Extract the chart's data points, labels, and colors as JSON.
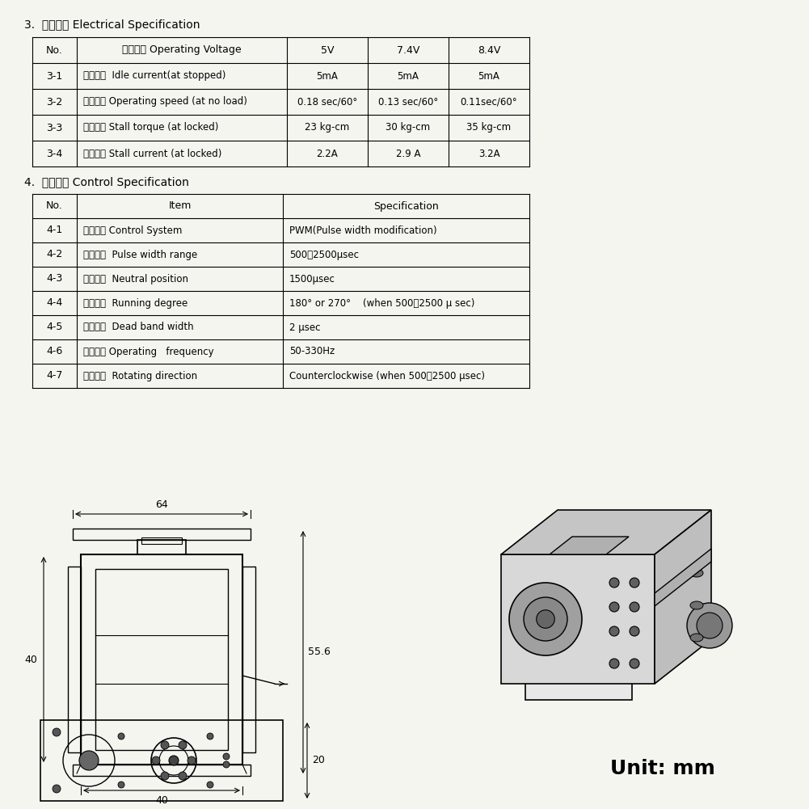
{
  "bg_color": "#f5f5f0",
  "table1_title": "3.  电气特性 Electrical Specification",
  "table1_headers": [
    "No.",
    "工作电压 Operating Voltage",
    "5V",
    "7.4V",
    "8.4V"
  ],
  "table1_rows": [
    [
      "3-1",
      "待机电流  Idle current(at stopped)",
      "5mA",
      "5mA",
      "5mA"
    ],
    [
      "3-2",
      "空载转速 Operating speed (at no load)",
      "0.18 sec/60°",
      "0.13 sec/60°",
      "0.11sec/60°"
    ],
    [
      "3-3",
      "堵转扭矩 Stall torque (at locked)",
      "23 kg-cm",
      "30 kg-cm",
      "35 kg-cm"
    ],
    [
      "3-4",
      "堵转电流 Stall current (at locked)",
      "2.2A",
      "2.9 A",
      "3.2A"
    ]
  ],
  "table2_title": "4.  控制特性 Control Specification",
  "table2_headers": [
    "No.",
    "Item",
    "Specification"
  ],
  "table2_rows": [
    [
      "4-1",
      "驱动方式 Control System",
      "PWM(Pulse width modification)"
    ],
    [
      "4-2",
      "脉宽范围  Pulse width range",
      "500～2500μsec"
    ],
    [
      "4-3",
      "中点位置  Neutral position",
      "1500μsec"
    ],
    [
      "4-4",
      "控制角度  Running degree",
      "180° or 270°    (when 500～2500 μ sec)"
    ],
    [
      "4-5",
      "控制精度  Dead band width",
      "2 μsec"
    ],
    [
      "4-6",
      "控制频率 Operating   frequency",
      "50-330Hz"
    ],
    [
      "4-7",
      "旋转方向  Rotating direction",
      "Counterclockwise (when 500～2500 μsec)"
    ]
  ],
  "unit_text": "Unit: mm",
  "dim_64": "64",
  "dim_40_h": "40",
  "dim_40_w": "40",
  "dim_55_6": "55.6",
  "dim_20": "20"
}
